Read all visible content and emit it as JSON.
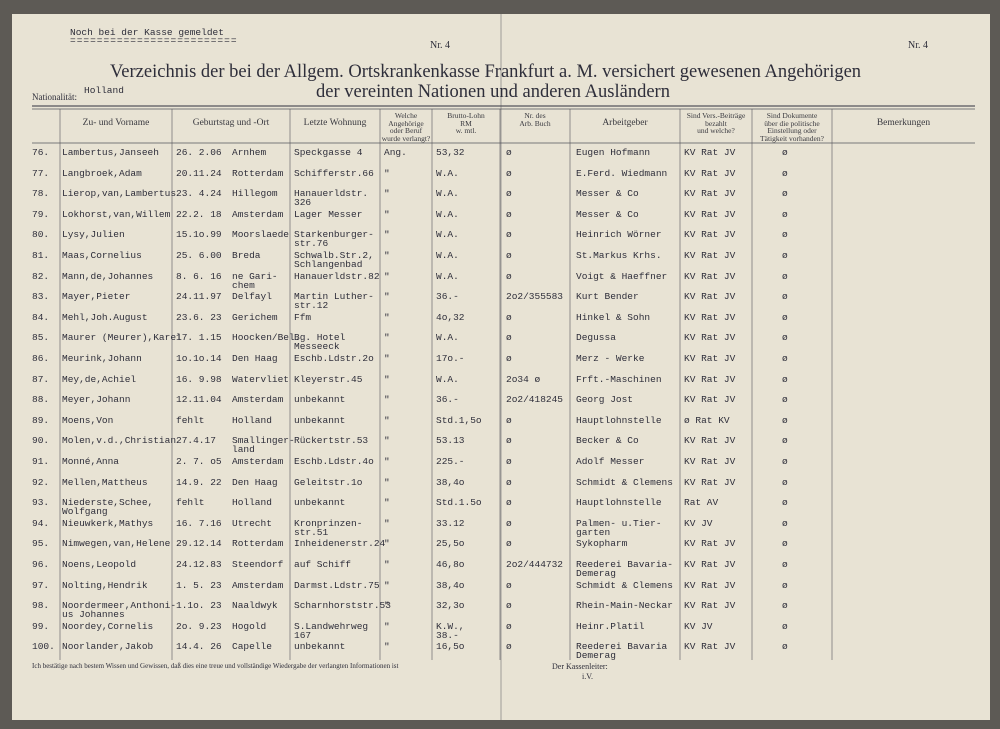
{
  "header": {
    "note": "Noch bei der Kasse gemeldet",
    "nr_left": "Nr. 4",
    "nr_right": "Nr. 4",
    "title_line1": "Verzeichnis der bei der Allgem. Ortskrankenkasse Frankfurt a. M. versichert gewesenen Angehörigen",
    "title_line2": "der vereinten Nationen und anderen Ausländern",
    "nationality_label": "Nationalität:",
    "nationality": "Holland"
  },
  "table": {
    "columns": [
      "Zu- und Vorname",
      "Geburtstag und -Ort",
      "Letzte Wohnung",
      "Welche Angehörige\noder Beruf\nwurde verlangt?",
      "Brutto-Lohn\nRM\nw.      mtl.",
      "Nr. des\nArb. Buch",
      "Arbeitgeber",
      "Sind Vers.-Beiträge\nbezahlt\nund welche?",
      "Sind Dokumente\nüber die politische\nEinstellung oder\nTätigkeit vorhanden?",
      "Bemerkungen"
    ],
    "rows": [
      [
        "76.",
        "Lambertus,Janseeh",
        "26. 2.06",
        "Arnhem",
        "Speckgasse 4",
        "Ang.",
        "53,32",
        "ø",
        "Eugen Hofmann",
        "KV Rat JV",
        "ø"
      ],
      [
        "77.",
        "Langbroek,Adam",
        "20.11.24",
        "Rotterdam",
        "Schifferstr.66",
        "\"",
        "W.A.",
        "ø",
        "E.Ferd. Wiedmann",
        "KV Rat JV",
        "ø"
      ],
      [
        "78.",
        "Lierop,van,Lambertus",
        "23. 4.24",
        "Hillegom",
        "Hanauerldstr.\n326",
        "\"",
        "W.A.",
        "ø",
        "Messer & Co",
        "KV Rat JV",
        "ø"
      ],
      [
        "79.",
        "Lokhorst,van,Willem",
        "22.2. 18",
        "Amsterdam",
        "Lager Messer",
        "\"",
        "W.A.",
        "ø",
        "Messer & Co",
        "KV Rat JV",
        "ø"
      ],
      [
        "80.",
        "Lysy,Julien",
        "15.1o.99",
        "Moorslaede",
        "Starkenburger-\nstr.76",
        "\"",
        "W.A.",
        "ø",
        "Heinrich Wörner",
        "KV Rat JV",
        "ø"
      ],
      [
        "81.",
        "Maas,Cornelius",
        "25. 6.00",
        "Breda",
        "Schwalb.Str.2,\nSchlangenbad",
        "\"",
        "W.A.",
        "ø",
        "St.Markus Krhs.",
        "KV Rat JV",
        "ø"
      ],
      [
        "82.",
        "Mann,de,Johannes",
        "8. 6. 16",
        "ne Gari-\nchem",
        "Hanauerldstr.82",
        "\"",
        "W.A.",
        "ø",
        "Voigt & Haeffner",
        "KV Rat JV",
        "ø"
      ],
      [
        "83.",
        "Mayer,Pieter",
        "24.11.97",
        "Delfayl",
        "Martin Luther-\nstr.12",
        "\"",
        "36.-",
        "2o2/355583",
        "Kurt Bender",
        "KV Rat JV",
        "ø"
      ],
      [
        "84.",
        "Mehl,Joh.August",
        "23.6. 23",
        "Gerichem",
        "Ffm",
        "\"",
        "4o,32",
        "ø",
        "Hinkel & Sohn",
        "KV Rat JV",
        "ø"
      ],
      [
        "85.",
        "Maurer (Meurer),Karel",
        "17. 1.15",
        "Hoocken/Bel.",
        "Bg. Hotel\nMesseeck",
        "\"",
        "W.A.",
        "ø",
        "Degussa",
        "KV Rat JV",
        "ø"
      ],
      [
        "86.",
        "Meurink,Johann",
        "1o.1o.14",
        "Den Haag",
        "Eschb.Ldstr.2o",
        "\"",
        "17o.-",
        "ø",
        "Merz - Werke",
        "KV Rat JV",
        "ø"
      ],
      [
        "87.",
        "Mey,de,Achiel",
        "16. 9.98",
        "Watervliet",
        "Kleyerstr.45",
        "\"",
        "W.A.",
        "2o34 ø",
        "Frft.-Maschinen",
        "KV Rat JV",
        "ø"
      ],
      [
        "88.",
        "Meyer,Johann",
        "12.11.04",
        "Amsterdam",
        "unbekannt",
        "\"",
        "36.-",
        "2o2/418245",
        "Georg Jost",
        "KV Rat JV",
        "ø"
      ],
      [
        "89.",
        "Moens,Von",
        "fehlt",
        "Holland",
        "unbekannt",
        "\"",
        "Std.1,5o",
        "ø",
        "Hauptlohnstelle",
        "ø Rat KV",
        "ø"
      ],
      [
        "90.",
        "Molen,v.d.,Christian",
        "27.4.17",
        "Smallinger-\nland",
        "Rückertstr.53",
        "\"",
        "53.13",
        "ø",
        "Becker & Co",
        "KV Rat JV",
        "ø"
      ],
      [
        "91.",
        "Monné,Anna",
        "2. 7. o5",
        "Amsterdam",
        "Eschb.Ldstr.4o",
        "\"",
        "225.-",
        "ø",
        "Adolf Messer",
        "KV Rat JV",
        "ø"
      ],
      [
        "92.",
        "Mellen,Mattheus",
        "14.9. 22",
        "Den Haag",
        "Geleitstr.1o",
        "\"",
        "38,4o",
        "ø",
        "Schmidt & Clemens",
        "KV Rat JV",
        "ø"
      ],
      [
        "93.",
        "Niederste,Schee,\nWolfgang",
        "fehlt",
        "Holland",
        "unbekannt",
        "\"",
        "Std.1.5o",
        "ø",
        "Hauptlohnstelle",
        "Rat AV",
        "ø"
      ],
      [
        "94.",
        "Nieuwkerk,Mathys",
        "16. 7.16",
        "Utrecht",
        "Kronprinzen-\nstr.51",
        "\"",
        "33.12",
        "ø",
        "Palmen- u.Tier-\ngarten",
        "KV JV",
        "ø"
      ],
      [
        "95.",
        "Nimwegen,van,Helene",
        "29.12.14",
        "Rotterdam",
        "Inheidenerstr.24",
        "\"",
        "25,5o",
        "ø",
        "Sykopharm",
        "KV Rat JV",
        "ø"
      ],
      [
        "96.",
        "Noens,Leopold",
        "24.12.83",
        "Steendorf",
        "auf Schiff",
        "\"",
        "46,8o",
        "2o2/444732",
        "Reederei Bavaria-\nDemerag",
        "KV Rat JV",
        "ø"
      ],
      [
        "97.",
        "Nolting,Hendrik",
        "1. 5. 23",
        "Amsterdam",
        "Darmst.Ldstr.75",
        "\"",
        "38,4o",
        "ø",
        "Schmidt & Clemens",
        "KV Rat JV",
        "ø"
      ],
      [
        "98.",
        "Noordermeer,Anthoni-\nus Johannes",
        "1.1o. 23",
        "Naaldwyk",
        "Scharnhorststr.53",
        "\"",
        "32,3o",
        "ø",
        "Rhein-Main-Neckar",
        "KV Rat JV",
        "ø"
      ],
      [
        "99.",
        "Noordey,Cornelis",
        "2o. 9.23",
        "Hogold",
        "S.Landwehrweg\n167",
        "\"",
        "K.W.,\n38.-",
        "ø",
        "Heinr.Platil",
        "KV JV",
        "ø"
      ],
      [
        "100.",
        "Noorlander,Jakob",
        "14.4. 26",
        "Capelle",
        "unbekannt",
        "\"",
        "16,5o",
        "ø",
        "Reederei Bavaria\nDemerag",
        "KV Rat JV",
        "ø"
      ]
    ]
  },
  "footer": {
    "statement": "Ich bestätige nach bestem Wissen und Gewissen, daß dies eine treue und vollständige Wiedergabe der verlangten Informationen ist",
    "signer": "Der Kassenleiter:",
    "signer_sub": "i.V."
  }
}
